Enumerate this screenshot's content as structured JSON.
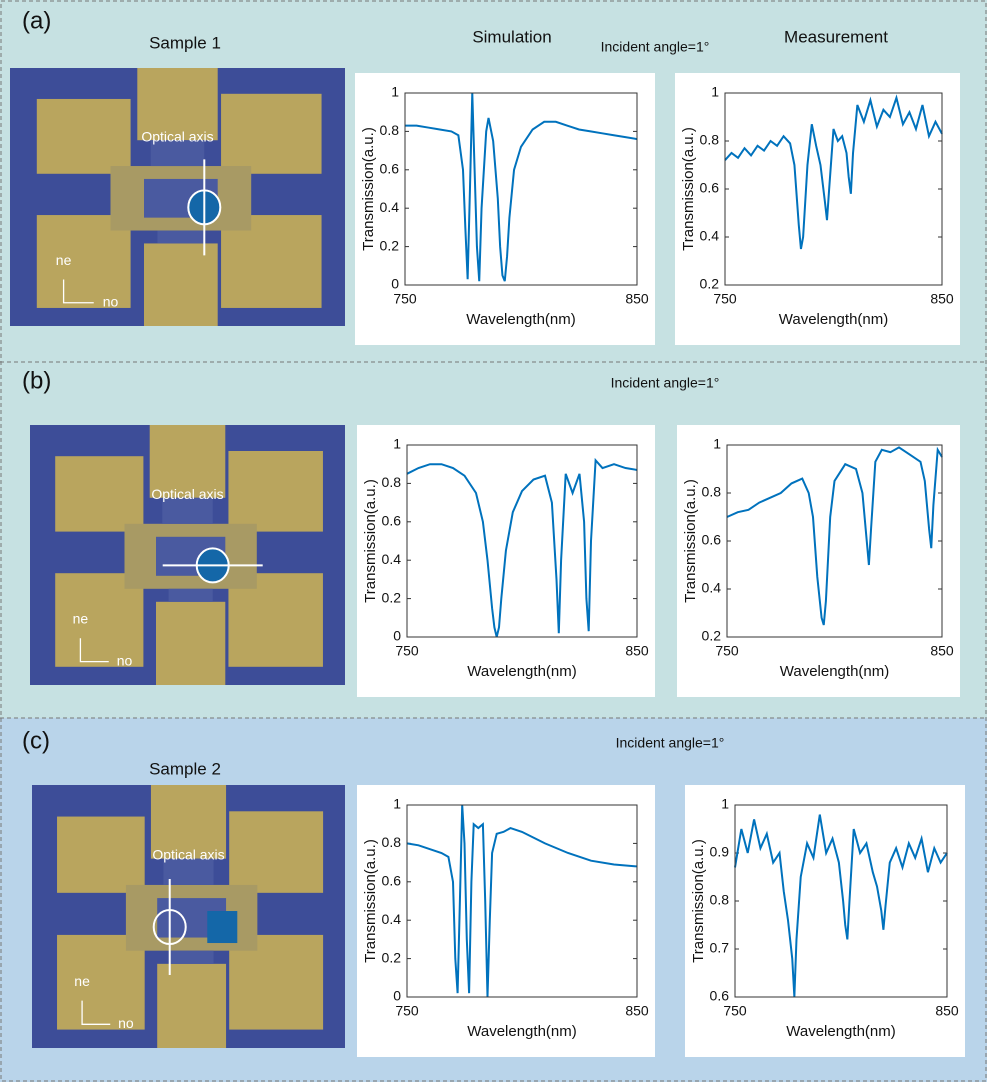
{
  "headers": {
    "simulation": "Simulation",
    "measurement": "Measurement"
  },
  "panels": [
    {
      "label": "(a)",
      "sample": "Sample 1",
      "angle": "Incident angle=1°",
      "axis_label": "Optical axis",
      "ne": "ne",
      "no": "no"
    },
    {
      "label": "(b)",
      "angle": "Incident angle=1°",
      "axis_label": "Optical axis",
      "ne": "ne",
      "no": "no"
    },
    {
      "label": "(c)",
      "sample": "Sample 2",
      "angle": "Incident angle=1°",
      "axis_label": "Optical axis",
      "ne": "ne",
      "no": "no"
    }
  ],
  "chart_data": [
    {
      "type": "line",
      "xlabel": "Wavelength(nm)",
      "ylabel": "Transmission(a.u.)",
      "color": "#0072bd",
      "x": [
        750,
        755,
        760,
        765,
        770,
        773,
        775,
        776,
        777,
        778,
        779,
        780,
        781,
        782,
        783,
        785,
        786,
        788,
        790,
        791,
        792,
        793,
        794,
        795,
        797,
        800,
        805,
        810,
        815,
        820,
        825,
        830,
        835,
        840,
        845,
        850
      ],
      "values": [
        0.83,
        0.83,
        0.82,
        0.81,
        0.8,
        0.78,
        0.6,
        0.3,
        0.03,
        0.5,
        1.0,
        0.6,
        0.2,
        0.02,
        0.4,
        0.8,
        0.87,
        0.75,
        0.45,
        0.2,
        0.05,
        0.02,
        0.15,
        0.35,
        0.6,
        0.72,
        0.81,
        0.85,
        0.85,
        0.83,
        0.81,
        0.8,
        0.79,
        0.78,
        0.77,
        0.76
      ],
      "xlim": [
        750,
        850
      ],
      "xticks": [
        750,
        850
      ],
      "ylim": [
        0,
        1
      ],
      "yticks": [
        0,
        0.2,
        0.4,
        0.6,
        0.8,
        1
      ]
    },
    {
      "type": "line",
      "xlabel": "Wavelength(nm)",
      "ylabel": "Transmission(a.u.)",
      "color": "#0072bd",
      "x": [
        750,
        753,
        756,
        759,
        762,
        765,
        768,
        771,
        774,
        777,
        780,
        782,
        784,
        785,
        786,
        788,
        790,
        792,
        794,
        796,
        797,
        798,
        800,
        802,
        804,
        806,
        807,
        808,
        809,
        811,
        814,
        817,
        820,
        823,
        826,
        829,
        832,
        835,
        838,
        841,
        844,
        847,
        850
      ],
      "values": [
        0.72,
        0.75,
        0.73,
        0.77,
        0.74,
        0.78,
        0.76,
        0.8,
        0.78,
        0.82,
        0.79,
        0.7,
        0.45,
        0.35,
        0.4,
        0.7,
        0.87,
        0.78,
        0.7,
        0.55,
        0.47,
        0.6,
        0.85,
        0.8,
        0.82,
        0.75,
        0.65,
        0.58,
        0.75,
        0.95,
        0.88,
        0.97,
        0.86,
        0.93,
        0.9,
        0.98,
        0.87,
        0.92,
        0.85,
        0.95,
        0.82,
        0.88,
        0.83
      ],
      "xlim": [
        750,
        850
      ],
      "xticks": [
        750,
        850
      ],
      "ylim": [
        0.2,
        1
      ],
      "yticks": [
        0.2,
        0.4,
        0.6,
        0.8,
        1
      ]
    },
    {
      "type": "line",
      "xlabel": "Wavelength(nm)",
      "ylabel": "Transmission(a.u.)",
      "color": "#0072bd",
      "x": [
        750,
        755,
        760,
        765,
        770,
        775,
        780,
        783,
        785,
        787,
        788,
        789,
        790,
        791,
        793,
        796,
        800,
        805,
        810,
        813,
        815,
        816,
        817,
        819,
        822,
        825,
        827,
        828,
        829,
        830,
        832,
        835,
        840,
        845,
        850
      ],
      "values": [
        0.85,
        0.88,
        0.9,
        0.9,
        0.88,
        0.84,
        0.75,
        0.6,
        0.4,
        0.15,
        0.05,
        0.0,
        0.05,
        0.2,
        0.45,
        0.65,
        0.76,
        0.82,
        0.84,
        0.7,
        0.3,
        0.02,
        0.4,
        0.85,
        0.75,
        0.85,
        0.6,
        0.2,
        0.03,
        0.5,
        0.92,
        0.88,
        0.9,
        0.88,
        0.87
      ],
      "xlim": [
        750,
        850
      ],
      "xticks": [
        750,
        850
      ],
      "ylim": [
        0,
        1
      ],
      "yticks": [
        0,
        0.2,
        0.4,
        0.6,
        0.8,
        1
      ]
    },
    {
      "type": "line",
      "xlabel": "Wavelength(nm)",
      "ylabel": "Transmission(a.u.)",
      "color": "#0072bd",
      "x": [
        750,
        755,
        760,
        765,
        770,
        775,
        780,
        785,
        788,
        790,
        792,
        794,
        795,
        796,
        798,
        800,
        805,
        810,
        813,
        815,
        816,
        817,
        819,
        822,
        826,
        830,
        835,
        840,
        842,
        844,
        845,
        846,
        848,
        850
      ],
      "values": [
        0.7,
        0.72,
        0.73,
        0.76,
        0.78,
        0.8,
        0.84,
        0.86,
        0.8,
        0.7,
        0.45,
        0.28,
        0.25,
        0.35,
        0.7,
        0.85,
        0.92,
        0.9,
        0.8,
        0.6,
        0.5,
        0.65,
        0.93,
        0.98,
        0.97,
        0.99,
        0.96,
        0.93,
        0.85,
        0.65,
        0.57,
        0.75,
        0.98,
        0.95
      ],
      "xlim": [
        750,
        850
      ],
      "xticks": [
        750,
        850
      ],
      "ylim": [
        0.2,
        1
      ],
      "yticks": [
        0.2,
        0.4,
        0.6,
        0.8,
        1
      ]
    },
    {
      "type": "line",
      "xlabel": "Wavelength(nm)",
      "ylabel": "Transmission(a.u.)",
      "color": "#0072bd",
      "x": [
        750,
        755,
        760,
        765,
        768,
        770,
        771,
        772,
        773,
        774,
        775,
        776,
        777,
        778,
        779,
        781,
        783,
        784,
        785,
        786,
        787,
        789,
        792,
        795,
        800,
        805,
        810,
        820,
        830,
        840,
        850
      ],
      "values": [
        0.8,
        0.79,
        0.77,
        0.75,
        0.73,
        0.6,
        0.2,
        0.02,
        0.5,
        1.0,
        0.8,
        0.3,
        0.02,
        0.6,
        0.9,
        0.88,
        0.9,
        0.5,
        0.0,
        0.4,
        0.75,
        0.85,
        0.86,
        0.88,
        0.86,
        0.83,
        0.8,
        0.75,
        0.71,
        0.69,
        0.68
      ],
      "xlim": [
        750,
        850
      ],
      "xticks": [
        750,
        850
      ],
      "ylim": [
        0,
        1
      ],
      "yticks": [
        0,
        0.2,
        0.4,
        0.6,
        0.8,
        1
      ]
    },
    {
      "type": "line",
      "xlabel": "Wavelength(nm)",
      "ylabel": "Transmission(a.u.)",
      "color": "#0072bd",
      "x": [
        750,
        753,
        756,
        759,
        762,
        765,
        768,
        771,
        773,
        775,
        777,
        778,
        779,
        781,
        784,
        787,
        790,
        793,
        796,
        799,
        801,
        802,
        803,
        804,
        806,
        809,
        812,
        815,
        817,
        819,
        820,
        821,
        823,
        826,
        829,
        832,
        835,
        838,
        841,
        844,
        847,
        850
      ],
      "values": [
        0.87,
        0.95,
        0.9,
        0.97,
        0.91,
        0.94,
        0.88,
        0.9,
        0.82,
        0.76,
        0.68,
        0.6,
        0.72,
        0.85,
        0.92,
        0.89,
        0.98,
        0.9,
        0.93,
        0.88,
        0.8,
        0.75,
        0.72,
        0.8,
        0.95,
        0.9,
        0.92,
        0.86,
        0.83,
        0.78,
        0.74,
        0.79,
        0.88,
        0.91,
        0.87,
        0.92,
        0.89,
        0.93,
        0.86,
        0.91,
        0.88,
        0.9
      ],
      "xlim": [
        750,
        850
      ],
      "xticks": [
        750,
        850
      ],
      "ylim": [
        0.6,
        1
      ],
      "yticks": [
        0.6,
        0.7,
        0.8,
        0.9,
        1
      ]
    }
  ]
}
